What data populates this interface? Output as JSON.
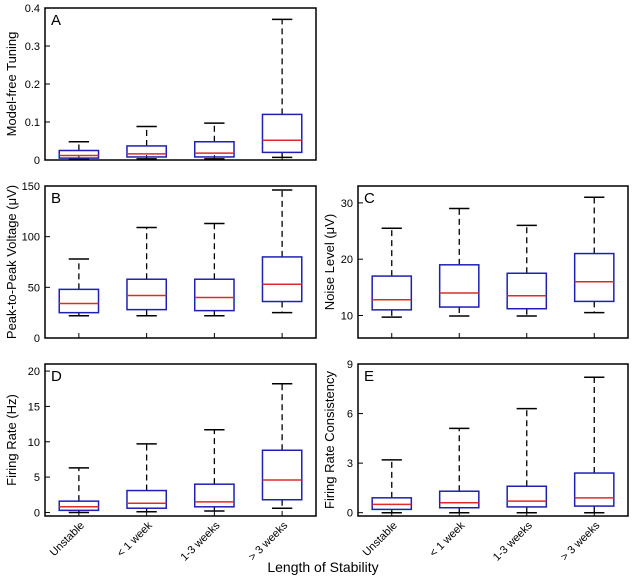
{
  "figure": {
    "xlabel": "Length of Stability"
  },
  "colors": {
    "box": "#1f1fb4",
    "median": "#e02a2a",
    "whisker": "#000000",
    "frame": "#000000"
  },
  "chart_data": [
    {
      "id": "A",
      "panel_label": "A",
      "type": "box",
      "ylabel": "Model-free Tuning",
      "ylim": [
        0,
        0.4
      ],
      "yticks": [
        0,
        0.1,
        0.2,
        0.3,
        0.4
      ],
      "ytick_labels": [
        "0",
        "0.1",
        "0.2",
        "0.3",
        "0.4"
      ],
      "categories": [
        "Unstable",
        "< 1 week",
        "1-3 weeks",
        "> 3 weeks"
      ],
      "show_xticklabels": false,
      "boxes": [
        {
          "whislo": 0.003,
          "q1": 0.005,
          "med": 0.012,
          "q3": 0.025,
          "whishi": 0.048
        },
        {
          "whislo": 0.003,
          "q1": 0.008,
          "med": 0.016,
          "q3": 0.037,
          "whishi": 0.088
        },
        {
          "whislo": 0.003,
          "q1": 0.008,
          "med": 0.018,
          "q3": 0.048,
          "whishi": 0.097
        },
        {
          "whislo": 0.007,
          "q1": 0.02,
          "med": 0.052,
          "q3": 0.12,
          "whishi": 0.37
        }
      ]
    },
    {
      "id": "B",
      "panel_label": "B",
      "type": "box",
      "ylabel": "Peak-to-Peak Voltage (μV)",
      "ylim": [
        0,
        150
      ],
      "yticks": [
        0,
        50,
        100,
        150
      ],
      "ytick_labels": [
        "0",
        "50",
        "100",
        "150"
      ],
      "categories": [
        "Unstable",
        "< 1 week",
        "1-3 weeks",
        "> 3 weeks"
      ],
      "show_xticklabels": false,
      "boxes": [
        {
          "whislo": 22,
          "q1": 25,
          "med": 34,
          "q3": 48,
          "whishi": 78
        },
        {
          "whislo": 22,
          "q1": 28,
          "med": 42,
          "q3": 58,
          "whishi": 109
        },
        {
          "whislo": 22,
          "q1": 27,
          "med": 40,
          "q3": 58,
          "whishi": 113
        },
        {
          "whislo": 25,
          "q1": 36,
          "med": 53,
          "q3": 80,
          "whishi": 146
        }
      ]
    },
    {
      "id": "C",
      "panel_label": "C",
      "type": "box",
      "ylabel": "Noise Level (μV)",
      "ylim": [
        6,
        33
      ],
      "yticks": [
        10,
        20,
        30
      ],
      "ytick_labels": [
        "10",
        "20",
        "30"
      ],
      "categories": [
        "Unstable",
        "< 1 week",
        "1-3 weeks",
        "> 3 weeks"
      ],
      "show_xticklabels": false,
      "boxes": [
        {
          "whislo": 9.7,
          "q1": 11.0,
          "med": 12.8,
          "q3": 17.0,
          "whishi": 25.5
        },
        {
          "whislo": 9.9,
          "q1": 11.5,
          "med": 14.0,
          "q3": 19.0,
          "whishi": 29.0
        },
        {
          "whislo": 9.9,
          "q1": 11.2,
          "med": 13.5,
          "q3": 17.5,
          "whishi": 26.0
        },
        {
          "whislo": 10.5,
          "q1": 12.5,
          "med": 16.0,
          "q3": 21.0,
          "whishi": 31.0
        }
      ]
    },
    {
      "id": "D",
      "panel_label": "D",
      "type": "box",
      "ylabel": "Firing Rate (Hz)",
      "ylim": [
        -0.5,
        21
      ],
      "yticks": [
        0,
        5,
        10,
        15,
        20
      ],
      "ytick_labels": [
        "0",
        "5",
        "10",
        "15",
        "20"
      ],
      "categories": [
        "Unstable",
        "< 1 week",
        "1-3 weeks",
        "> 3 weeks"
      ],
      "show_xticklabels": true,
      "boxes": [
        {
          "whislo": 0.0,
          "q1": 0.3,
          "med": 0.8,
          "q3": 1.6,
          "whishi": 6.3
        },
        {
          "whislo": 0.1,
          "q1": 0.6,
          "med": 1.3,
          "q3": 3.1,
          "whishi": 9.7
        },
        {
          "whislo": 0.2,
          "q1": 0.8,
          "med": 1.5,
          "q3": 4.0,
          "whishi": 11.7
        },
        {
          "whislo": 0.6,
          "q1": 1.8,
          "med": 4.6,
          "q3": 8.8,
          "whishi": 18.2
        }
      ]
    },
    {
      "id": "E",
      "panel_label": "E",
      "type": "box",
      "ylabel": "Firing Rate Consistency",
      "ylim": [
        -0.2,
        9
      ],
      "yticks": [
        0,
        3,
        6,
        9
      ],
      "ytick_labels": [
        "0",
        "3",
        "6",
        "9"
      ],
      "categories": [
        "Unstable",
        "< 1 week",
        "1-3 weeks",
        "> 3 weeks"
      ],
      "show_xticklabels": true,
      "boxes": [
        {
          "whislo": 0.0,
          "q1": 0.2,
          "med": 0.5,
          "q3": 0.9,
          "whishi": 3.2
        },
        {
          "whislo": 0.0,
          "q1": 0.3,
          "med": 0.6,
          "q3": 1.3,
          "whishi": 5.1
        },
        {
          "whislo": 0.0,
          "q1": 0.35,
          "med": 0.7,
          "q3": 1.6,
          "whishi": 6.3
        },
        {
          "whislo": 0.0,
          "q1": 0.4,
          "med": 0.9,
          "q3": 2.4,
          "whishi": 8.2
        }
      ]
    }
  ]
}
